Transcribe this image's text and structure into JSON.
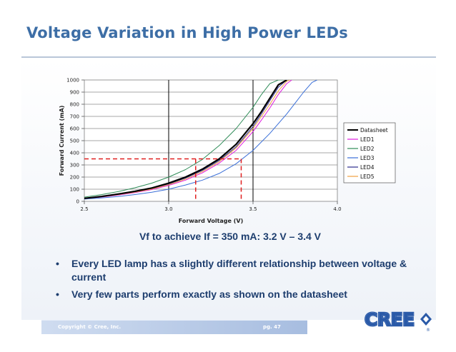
{
  "slide": {
    "title": "Voltage Variation in High Power LEDs",
    "caption": "Vf to achieve If = 350 mA: 3.2 V – 3.4 V",
    "bullets": [
      "Every LED lamp has a slightly different relationship between voltage & current",
      "Very few parts perform exactly as shown on the datasheet"
    ],
    "bullet_glyph": "•",
    "footer": {
      "copyright": "Copyright © Cree, Inc.",
      "page": "pg. 47"
    },
    "logo": {
      "text": "CREE",
      "registered": "®",
      "color": "#2a5aa8"
    },
    "colors": {
      "title": "#3d6ea6",
      "text": "#1d3d6e",
      "footer_band": "#a7bde0"
    }
  },
  "chart_data": {
    "type": "line",
    "xlabel": "Forward Voltage (V)",
    "ylabel": "Forward Current (mA)",
    "xlim": [
      2.5,
      4.0
    ],
    "ylim": [
      0,
      1000
    ],
    "x_ticks": [
      "2.5",
      "3.0",
      "3.5",
      "4.0"
    ],
    "y_ticks": [
      "0",
      "100",
      "200",
      "300",
      "400",
      "500",
      "600",
      "700",
      "800",
      "900",
      "1000"
    ],
    "y_gridlines": true,
    "x_gridlines": [
      3.0,
      3.5
    ],
    "legend_position": "right",
    "series": [
      {
        "name": "Datasheet",
        "color": "#000000",
        "width": 2.2,
        "x": [
          2.5,
          2.6,
          2.7,
          2.8,
          2.9,
          3.0,
          3.1,
          3.2,
          3.3,
          3.4,
          3.5,
          3.55,
          3.6,
          3.65,
          3.7
        ],
        "y": [
          25,
          40,
          60,
          83,
          110,
          150,
          200,
          265,
          350,
          470,
          640,
          740,
          850,
          960,
          1000
        ]
      },
      {
        "name": "LED1",
        "color": "#e01ce0",
        "width": 1,
        "x": [
          2.5,
          2.6,
          2.7,
          2.8,
          2.9,
          3.0,
          3.1,
          3.2,
          3.3,
          3.4,
          3.5,
          3.55,
          3.6,
          3.65,
          3.7,
          3.73
        ],
        "y": [
          22,
          35,
          52,
          72,
          97,
          132,
          175,
          235,
          315,
          420,
          575,
          670,
          770,
          880,
          970,
          1000
        ]
      },
      {
        "name": "LED2",
        "color": "#2e8b57",
        "width": 1,
        "x": [
          2.5,
          2.6,
          2.7,
          2.8,
          2.9,
          3.0,
          3.1,
          3.2,
          3.3,
          3.4,
          3.5,
          3.55,
          3.6,
          3.65,
          3.68
        ],
        "y": [
          35,
          55,
          80,
          112,
          150,
          200,
          262,
          345,
          460,
          600,
          775,
          880,
          970,
          1000,
          1000
        ]
      },
      {
        "name": "LED3",
        "color": "#3a6fd8",
        "width": 1,
        "x": [
          2.5,
          2.6,
          2.7,
          2.8,
          2.9,
          3.0,
          3.1,
          3.2,
          3.3,
          3.4,
          3.5,
          3.6,
          3.7,
          3.75,
          3.8,
          3.85,
          3.88
        ],
        "y": [
          18,
          28,
          40,
          56,
          75,
          100,
          135,
          175,
          230,
          310,
          420,
          560,
          720,
          810,
          900,
          980,
          1000
        ]
      },
      {
        "name": "LED4",
        "color": "#2b2b8c",
        "width": 1,
        "x": [
          2.5,
          2.6,
          2.7,
          2.8,
          2.9,
          3.0,
          3.1,
          3.2,
          3.3,
          3.4,
          3.5,
          3.55,
          3.6,
          3.65,
          3.7
        ],
        "y": [
          24,
          38,
          57,
          79,
          106,
          143,
          192,
          255,
          337,
          450,
          615,
          720,
          830,
          940,
          1000
        ]
      },
      {
        "name": "LED5",
        "color": "#f0a040",
        "width": 1,
        "x": [
          2.5,
          2.6,
          2.7,
          2.8,
          2.9,
          3.0,
          3.1,
          3.2,
          3.3,
          3.4,
          3.5,
          3.55,
          3.6,
          3.65,
          3.7,
          3.72
        ],
        "y": [
          23,
          37,
          55,
          76,
          102,
          137,
          183,
          245,
          327,
          440,
          600,
          700,
          800,
          910,
          990,
          1000
        ]
      }
    ],
    "reference_lines": {
      "color": "#e02020",
      "current": 350,
      "voltages": [
        3.16,
        3.43
      ]
    }
  }
}
